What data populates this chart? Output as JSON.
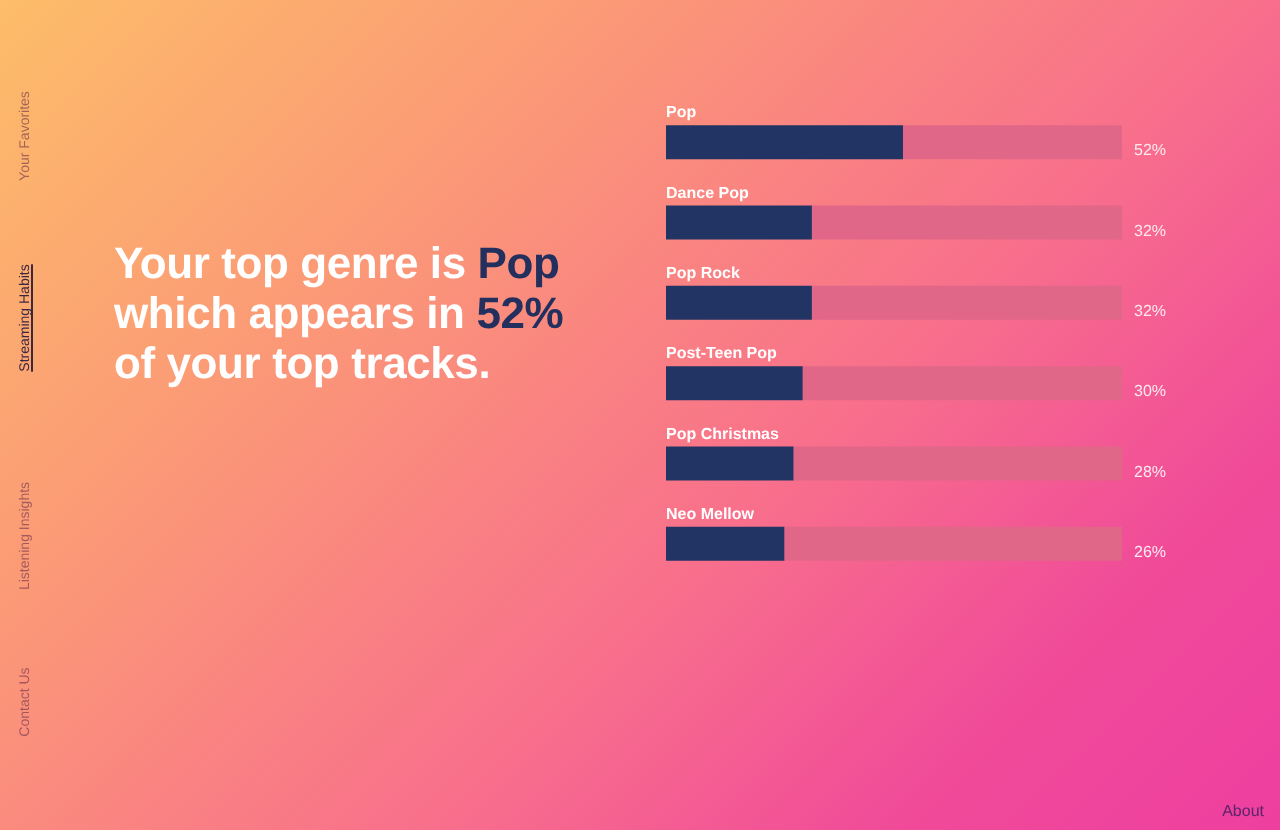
{
  "chart_data": {
    "type": "bar",
    "orientation": "horizontal",
    "stacked": true,
    "title": "Your top genre is Pop which appears in 52% of your top tracks.",
    "categories": [
      "Pop",
      "Dance Pop",
      "Pop Rock",
      "Post-Teen Pop",
      "Pop Christmas",
      "Neo Mellow"
    ],
    "series": [
      {
        "color": "#213463",
        "values": [
          52,
          32,
          32,
          30,
          28,
          26
        ],
        "value_labels": [
          "52%",
          "32%",
          "32%",
          "30%",
          "28%",
          "26%"
        ]
      },
      {
        "color": "#e06787",
        "values": [
          48,
          68,
          68,
          70,
          72,
          74
        ]
      }
    ],
    "xlim": [
      0,
      100
    ],
    "annotations": [
      "Your Favorites",
      "Streaming Habits",
      "Listening Insights",
      "Contact Us",
      "About"
    ]
  }
}
